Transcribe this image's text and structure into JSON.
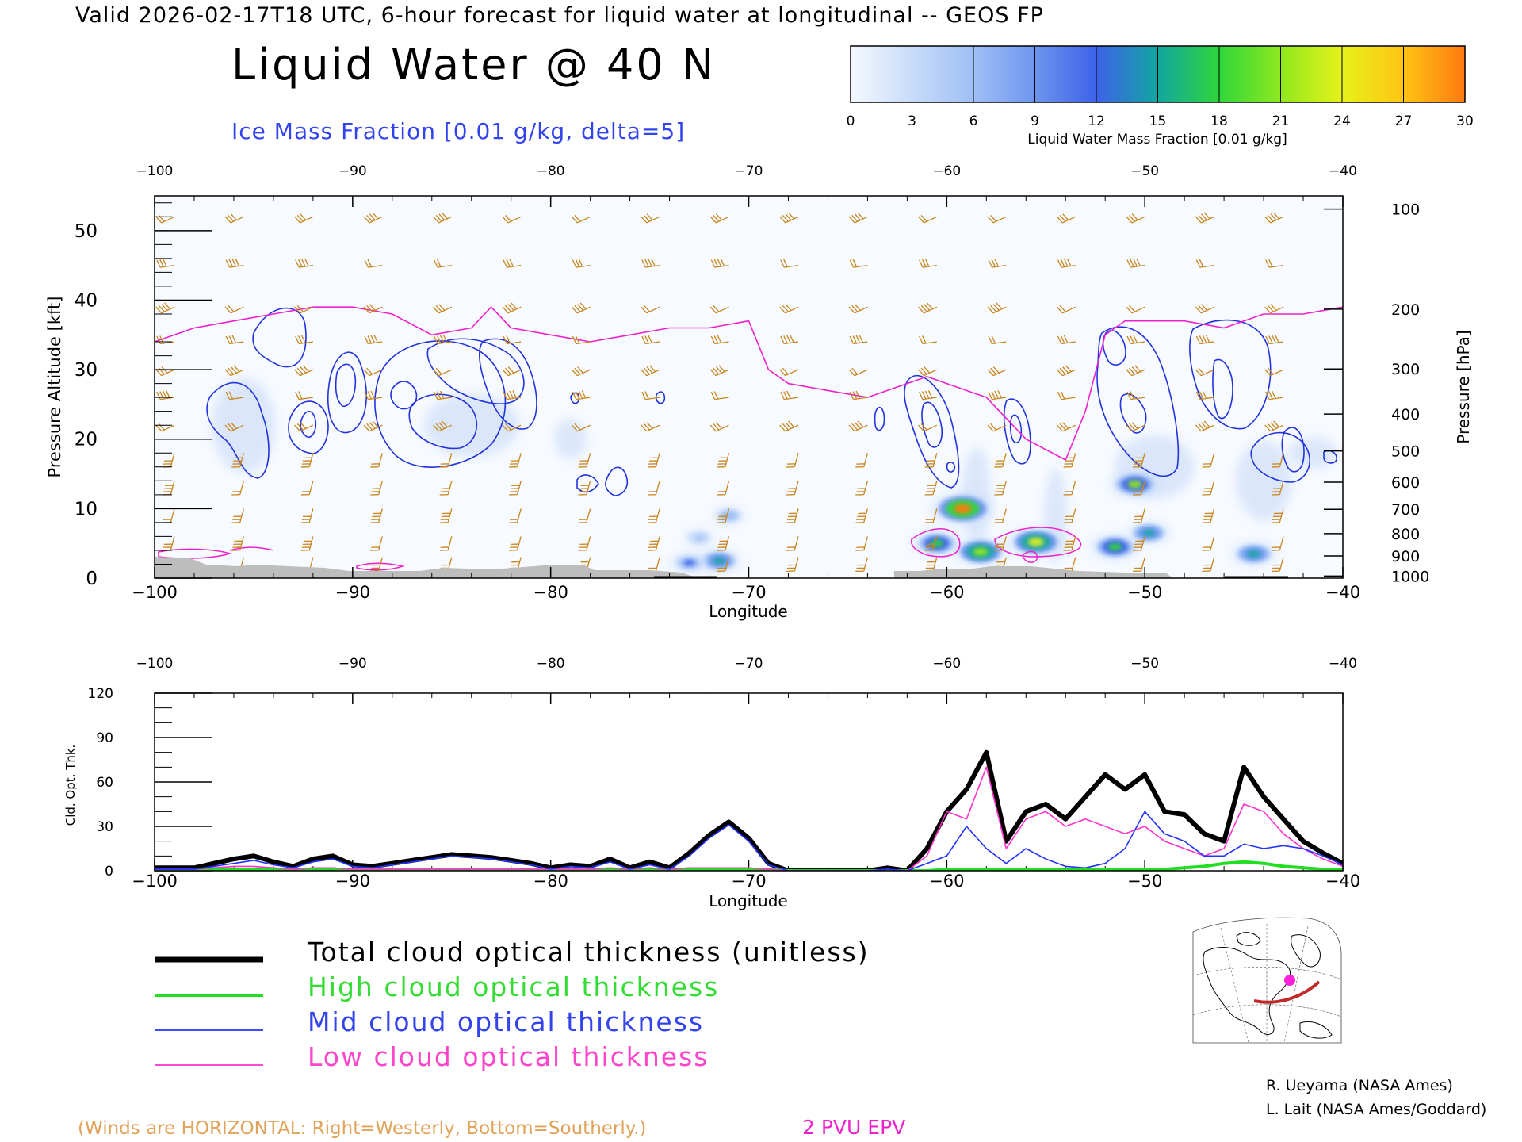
{
  "header": {
    "valid_line": "Valid 2026-02-17T18 UTC, 6-hour forecast for liquid water at longitudinal -- GEOS FP",
    "title": "Liquid Water @ 40 N",
    "subtitle": "Ice Mass Fraction [0.01 g/kg, delta=5]"
  },
  "colorbar": {
    "label": "Liquid Water Mass Fraction [0.01 g/kg]",
    "ticks": [
      "0",
      "3",
      "6",
      "9",
      "12",
      "15",
      "18",
      "21",
      "24",
      "27",
      "30"
    ],
    "colors": [
      "#f4f8ff",
      "#c8dcfa",
      "#9fbff5",
      "#6d95ee",
      "#3d62ea",
      "#12a6a0",
      "#2fd63a",
      "#8fe81e",
      "#e6f21a",
      "#ffc414",
      "#ff7a10"
    ]
  },
  "legend": {
    "total": "Total cloud optical thickness (unitless)",
    "high": "High cloud optical thickness",
    "mid": "Mid cloud optical thickness",
    "low": "Low cloud optical thickness",
    "colors": {
      "total": "#000000",
      "high": "#22dd22",
      "mid": "#2233ff",
      "low": "#ff33cc"
    }
  },
  "footer": {
    "winds_note": "(Winds are HORIZONTAL: Right=Westerly, Bottom=Southerly.)",
    "epv_label": "2 PVU EPV",
    "credit1": "R. Ueyama (NASA Ames)",
    "credit2": "L. Lait (NASA Ames/Goddard)"
  },
  "chart_data": [
    {
      "type": "heatmap",
      "title": "Liquid Water @ 40 N",
      "xlabel": "Longitude",
      "ylabel": "Pressure Altitude [kft]",
      "y2label": "Pressure [hPa]",
      "xlim": [
        -100,
        -40
      ],
      "ylim": [
        0,
        55
      ],
      "xticks": [
        "-100",
        "-90",
        "-80",
        "-70",
        "-60",
        "-50",
        "-40"
      ],
      "yticks": [
        "0",
        "10",
        "20",
        "30",
        "40",
        "50"
      ],
      "pressure_ticks": [
        {
          "label": "100",
          "alt": 53.1
        },
        {
          "label": "200",
          "alt": 38.7
        },
        {
          "label": "300",
          "alt": 30.1
        },
        {
          "label": "400",
          "alt": 23.6
        },
        {
          "label": "500",
          "alt": 18.3
        },
        {
          "label": "600",
          "alt": 13.8
        },
        {
          "label": "700",
          "alt": 9.9
        },
        {
          "label": "800",
          "alt": 6.4
        },
        {
          "label": "900",
          "alt": 3.2
        },
        {
          "label": "1000",
          "alt": 0.3
        }
      ],
      "liquid_water_blobs": [
        {
          "lon": -59.2,
          "alt": 10,
          "value": 29
        },
        {
          "lon": -60.5,
          "alt": 5,
          "value": 18
        },
        {
          "lon": -58.3,
          "alt": 3.8,
          "value": 22
        },
        {
          "lon": -55.5,
          "alt": 5.2,
          "value": 24
        },
        {
          "lon": -51.5,
          "alt": 4.5,
          "value": 19
        },
        {
          "lon": -50.5,
          "alt": 13.5,
          "value": 20
        },
        {
          "lon": -49.8,
          "alt": 6.5,
          "value": 14
        },
        {
          "lon": -44.5,
          "alt": 3.5,
          "value": 16
        },
        {
          "lon": -71.5,
          "alt": 2.5,
          "value": 15
        },
        {
          "lon": -73,
          "alt": 2.2,
          "value": 11
        },
        {
          "lon": -71,
          "alt": 9,
          "value": 7
        },
        {
          "lon": -72.5,
          "alt": 5.8,
          "value": 5
        }
      ],
      "ice_contours_note": "Ice Mass Fraction [0.01 g/kg, delta=5]",
      "epv_2pvu_altitude": {
        "lon": [
          -100,
          -98,
          -96,
          -94,
          -92,
          -90,
          -88,
          -86,
          -84,
          -83,
          -82,
          -80,
          -78,
          -76,
          -74,
          -72,
          -70,
          -69,
          -68,
          -66,
          -64,
          -62,
          -61,
          -60,
          -59,
          -58,
          -56,
          -54,
          -53,
          -52,
          -51,
          -50,
          -48,
          -46,
          -44,
          -42,
          -40
        ],
        "alt": [
          34,
          36,
          37,
          38,
          39,
          39,
          38,
          35,
          36,
          39,
          36,
          35,
          34,
          35,
          36,
          36,
          37,
          30,
          28,
          27,
          26,
          28,
          29,
          28,
          27,
          26,
          20,
          17,
          24,
          35,
          37,
          37,
          37,
          36,
          38,
          38,
          39
        ]
      }
    },
    {
      "type": "line",
      "xlabel": "Longitude",
      "ylabel": "Cld. Opt. Thk.",
      "xlim": [
        -100,
        -40
      ],
      "ylim": [
        0,
        120
      ],
      "yticks": [
        "0",
        "30",
        "60",
        "90",
        "120"
      ],
      "x": [
        -100,
        -98,
        -97,
        -96,
        -95,
        -94,
        -93,
        -92,
        -91,
        -90,
        -89,
        -88,
        -87,
        -86,
        -85,
        -84,
        -83,
        -82,
        -81,
        -80,
        -79,
        -78,
        -77,
        -76,
        -75,
        -74,
        -73,
        -72,
        -71,
        -70,
        -69,
        -68,
        -67,
        -66,
        -65,
        -64,
        -63,
        -62,
        -61,
        -60,
        -59,
        -58,
        -57,
        -56,
        -55,
        -54,
        -53,
        -52,
        -51,
        -50,
        -49,
        -48,
        -47,
        -46,
        -45,
        -44,
        -43,
        -42,
        -41,
        -40
      ],
      "series": [
        {
          "name": "Total cloud optical thickness (unitless)",
          "values": [
            2,
            2,
            5,
            8,
            10,
            6,
            3,
            8,
            10,
            4,
            3,
            5,
            7,
            9,
            11,
            10,
            9,
            7,
            5,
            2,
            4,
            3,
            8,
            2,
            6,
            2,
            12,
            24,
            33,
            22,
            5,
            0,
            0,
            0,
            0,
            0,
            2,
            0,
            15,
            40,
            55,
            80,
            20,
            40,
            45,
            35,
            50,
            65,
            55,
            65,
            40,
            38,
            25,
            20,
            70,
            50,
            35,
            20,
            12,
            5
          ]
        },
        {
          "name": "High cloud optical thickness",
          "values": [
            0,
            0,
            1,
            1,
            1,
            1,
            1,
            1,
            1,
            1,
            1,
            1,
            1,
            1,
            1,
            1,
            1,
            1,
            1,
            1,
            1,
            1,
            1,
            1,
            1,
            1,
            1,
            1,
            1,
            1,
            1,
            0,
            0,
            0,
            0,
            0,
            0,
            0,
            0,
            1,
            1,
            1,
            1,
            1,
            1,
            1,
            1,
            1,
            1,
            1,
            1,
            2,
            3,
            5,
            6,
            5,
            3,
            2,
            1,
            1
          ]
        },
        {
          "name": "Mid cloud optical thickness",
          "values": [
            1,
            1,
            3,
            5,
            7,
            4,
            2,
            6,
            8,
            3,
            2,
            4,
            6,
            8,
            10,
            9,
            8,
            6,
            4,
            1,
            3,
            2,
            6,
            1,
            4,
            1,
            10,
            22,
            31,
            20,
            4,
            0,
            0,
            0,
            0,
            0,
            1,
            0,
            5,
            10,
            30,
            15,
            5,
            15,
            8,
            3,
            2,
            5,
            15,
            40,
            25,
            20,
            10,
            10,
            18,
            15,
            17,
            15,
            10,
            4
          ]
        },
        {
          "name": "Low cloud optical thickness",
          "values": [
            1,
            1,
            2,
            3,
            3,
            2,
            1,
            2,
            2,
            1,
            1,
            1,
            1,
            1,
            1,
            1,
            1,
            1,
            1,
            1,
            1,
            1,
            2,
            1,
            2,
            1,
            2,
            2,
            2,
            2,
            1,
            0,
            0,
            0,
            0,
            0,
            1,
            0,
            10,
            40,
            35,
            70,
            15,
            35,
            40,
            30,
            35,
            30,
            25,
            30,
            20,
            15,
            10,
            15,
            45,
            40,
            25,
            15,
            8,
            3
          ]
        }
      ]
    }
  ]
}
